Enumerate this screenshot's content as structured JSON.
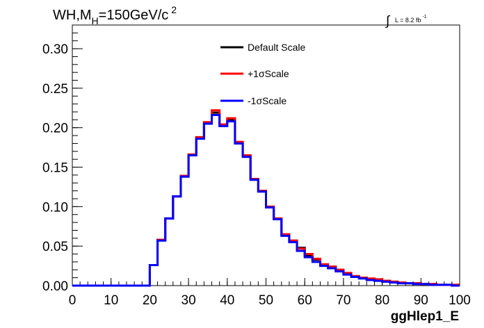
{
  "chart_data": {
    "type": "line",
    "title": {
      "main": "WH,M",
      "sub": "H",
      "rest": "=150GeV/c",
      "sup": "2"
    },
    "lumi": {
      "symbol": "∫",
      "text": "L = 8.2 fb",
      "sup": "-1"
    },
    "xlabel": "ggHlep1_E",
    "ylabel": "",
    "xlim": [
      0,
      100
    ],
    "ylim": [
      0,
      0.33
    ],
    "x_ticks": [
      0,
      10,
      20,
      30,
      40,
      50,
      60,
      70,
      80,
      90,
      100
    ],
    "x_tick_labels": [
      "0",
      "10",
      "20",
      "30",
      "40",
      "50",
      "60",
      "70",
      "80",
      "90",
      "100"
    ],
    "y_ticks": [
      0,
      0.05,
      0.1,
      0.15,
      0.2,
      0.25,
      0.3
    ],
    "y_tick_labels": [
      "0.00",
      "0.05",
      "0.10",
      "0.15",
      "0.20",
      "0.25",
      "0.30"
    ],
    "legend_position": "top-center",
    "bin_edges": [
      0,
      2,
      4,
      6,
      8,
      10,
      12,
      14,
      16,
      18,
      20,
      22,
      24,
      26,
      28,
      30,
      32,
      34,
      36,
      38,
      40,
      42,
      44,
      46,
      48,
      50,
      52,
      54,
      56,
      58,
      60,
      62,
      64,
      66,
      68,
      70,
      72,
      74,
      76,
      78,
      80,
      82,
      84,
      86,
      88,
      90,
      92,
      94,
      96,
      98,
      100
    ],
    "series": [
      {
        "name": "Default Scale",
        "color": "#000000",
        "values": [
          0,
          0,
          0,
          0,
          0,
          0,
          0,
          0,
          0,
          0,
          0.026,
          0.058,
          0.085,
          0.113,
          0.138,
          0.166,
          0.187,
          0.206,
          0.219,
          0.204,
          0.21,
          0.181,
          0.165,
          0.135,
          0.12,
          0.1,
          0.085,
          0.064,
          0.057,
          0.048,
          0.038,
          0.033,
          0.027,
          0.024,
          0.02,
          0.016,
          0.012,
          0.01,
          0.008,
          0.007,
          0.006,
          0.005,
          0.004,
          0.003,
          0.003,
          0.002,
          0.002,
          0.001,
          0.001,
          0.001
        ]
      },
      {
        "name": "+1σScale",
        "color": "#ff0000",
        "values": [
          0,
          0,
          0,
          0,
          0,
          0,
          0,
          0,
          0,
          0,
          0.026,
          0.058,
          0.085,
          0.113,
          0.139,
          0.166,
          0.188,
          0.207,
          0.222,
          0.204,
          0.212,
          0.182,
          0.165,
          0.135,
          0.12,
          0.1,
          0.085,
          0.065,
          0.057,
          0.047,
          0.04,
          0.034,
          0.027,
          0.024,
          0.02,
          0.016,
          0.012,
          0.01,
          0.009,
          0.008,
          0.006,
          0.005,
          0.004,
          0.003,
          0.003,
          0.002,
          0.002,
          0.001,
          0.001,
          0.001
        ]
      },
      {
        "name": "-1σScale",
        "color": "#0000ff",
        "values": [
          0,
          0,
          0,
          0,
          0,
          0,
          0,
          0,
          0,
          0,
          0.026,
          0.057,
          0.085,
          0.113,
          0.138,
          0.165,
          0.186,
          0.205,
          0.216,
          0.202,
          0.208,
          0.18,
          0.163,
          0.134,
          0.119,
          0.099,
          0.084,
          0.063,
          0.055,
          0.044,
          0.036,
          0.03,
          0.025,
          0.022,
          0.018,
          0.014,
          0.011,
          0.009,
          0.007,
          0.006,
          0.005,
          0.004,
          0.003,
          0.003,
          0.002,
          0.002,
          0.001,
          0.001,
          0.001,
          0.0
        ]
      }
    ]
  }
}
